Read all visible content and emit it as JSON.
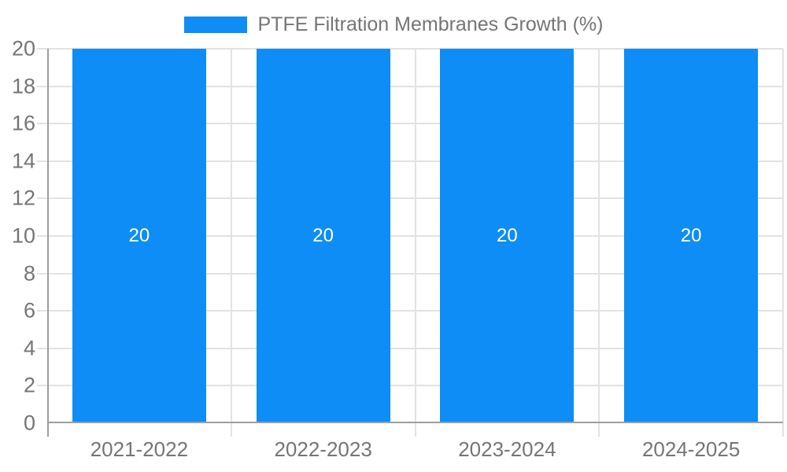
{
  "legend": {
    "label": "PTFE Filtration Membranes Growth (%)"
  },
  "chart_data": {
    "type": "bar",
    "title": "",
    "categories": [
      "2021-2022",
      "2022-2023",
      "2023-2024",
      "2024-2025"
    ],
    "series": [
      {
        "name": "PTFE Filtration Membranes Growth (%)",
        "values": [
          20,
          20,
          20,
          20
        ]
      }
    ],
    "bar_labels": [
      "20",
      "20",
      "20",
      "20"
    ],
    "xlabel": "",
    "ylabel": "",
    "ylim": [
      0,
      20
    ],
    "yticks": [
      0,
      2,
      4,
      6,
      8,
      10,
      12,
      14,
      16,
      18,
      20
    ],
    "grid": true,
    "legend_position": "top-center",
    "colors": {
      "bar": "#0d8df5",
      "axis_line": "#9e9e9e",
      "grid_line": "#e2e2e2",
      "tick_text": "#757575",
      "bar_label_text": "#ffffff",
      "background": "#ffffff"
    }
  }
}
